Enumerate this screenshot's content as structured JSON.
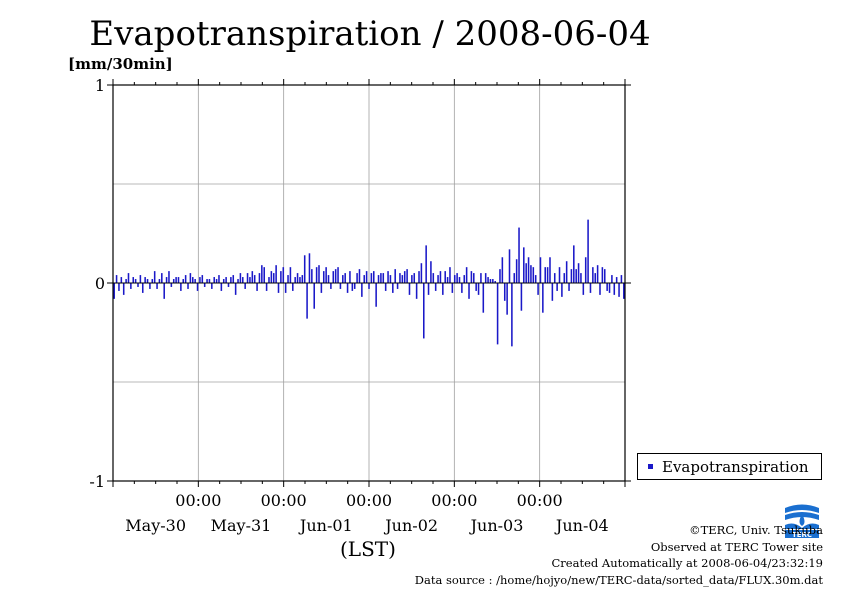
{
  "title": "Evapotranspiration / 2008-06-04",
  "unit_label": "[mm/30min]",
  "legend_label": "Evapotranspiration",
  "x_axis_label": "(LST)",
  "credits": {
    "copyright": "©TERC, Univ. Tsukuba",
    "observed": "Observed at TERC Tower site",
    "created": "Created Automatically at 2008-06-04/23:32:19",
    "source": "Data source : /home/hojyo/new/TERC-data/sorted_data/FLUX.30m.dat"
  },
  "logo_text": "TERC",
  "colors": {
    "series": "#1a18c8",
    "grid": "#a0a0a0",
    "axis": "#000000"
  },
  "chart_data": {
    "type": "bar",
    "ylim": [
      -1,
      1
    ],
    "y_ticks": [
      -1,
      0,
      1
    ],
    "y_tick_labels": [
      "-1",
      "0",
      "1"
    ],
    "x_range_days": [
      0,
      6
    ],
    "x_day_labels": [
      "May-30",
      "May-31",
      "Jun-01",
      "Jun-02",
      "Jun-03",
      "Jun-04"
    ],
    "x_time_labels": [
      "00:00",
      "00:00",
      "00:00",
      "00:00",
      "00:00"
    ],
    "grid": true,
    "legend_position": "bottom-right",
    "series": [
      {
        "name": "Evapotranspiration",
        "values": [
          -0.08,
          0.04,
          -0.04,
          0.03,
          -0.06,
          0.02,
          0.05,
          -0.03,
          0.03,
          0.02,
          -0.02,
          0.04,
          -0.05,
          0.03,
          0.02,
          -0.03,
          0.02,
          0.06,
          -0.03,
          0.02,
          0.05,
          -0.08,
          0.03,
          0.06,
          -0.02,
          0.02,
          0.03,
          0.03,
          -0.04,
          0.02,
          0.04,
          -0.03,
          0.05,
          0.03,
          0.02,
          -0.04,
          0.03,
          0.04,
          -0.02,
          0.02,
          0.02,
          -0.03,
          0.03,
          0.02,
          0.04,
          -0.04,
          0.02,
          0.03,
          -0.02,
          0.03,
          0.04,
          -0.06,
          0.02,
          0.05,
          0.03,
          -0.03,
          0.05,
          0.03,
          0.06,
          0.04,
          -0.04,
          0.05,
          0.09,
          0.08,
          -0.04,
          0.03,
          0.06,
          0.05,
          0.09,
          -0.05,
          0.06,
          0.08,
          -0.05,
          0.04,
          0.08,
          -0.04,
          0.03,
          0.05,
          0.03,
          0.04,
          0.14,
          -0.18,
          0.15,
          0.07,
          -0.13,
          0.08,
          0.09,
          -0.05,
          0.06,
          0.08,
          0.04,
          -0.03,
          0.06,
          0.07,
          0.08,
          -0.03,
          0.04,
          0.05,
          -0.05,
          0.06,
          -0.04,
          -0.03,
          0.05,
          0.07,
          -0.07,
          0.04,
          0.06,
          -0.03,
          0.05,
          0.06,
          -0.12,
          0.04,
          0.05,
          0.05,
          -0.04,
          0.06,
          0.04,
          -0.05,
          0.07,
          -0.03,
          0.05,
          0.04,
          0.06,
          0.07,
          -0.06,
          0.04,
          0.05,
          -0.08,
          0.06,
          0.1,
          -0.28,
          0.19,
          -0.06,
          0.11,
          0.05,
          -0.04,
          0.04,
          0.06,
          -0.06,
          0.06,
          0.03,
          0.08,
          -0.05,
          0.04,
          0.05,
          0.03,
          -0.05,
          0.04,
          0.08,
          -0.08,
          0.06,
          0.05,
          -0.04,
          -0.06,
          0.05,
          -0.15,
          0.05,
          0.03,
          0.02,
          0.02,
          0.01,
          -0.31,
          0.07,
          0.13,
          -0.09,
          -0.16,
          0.17,
          -0.32,
          0.05,
          0.12,
          0.28,
          -0.14,
          0.18,
          0.1,
          0.13,
          0.09,
          0.08,
          0.04,
          -0.06,
          0.13,
          -0.15,
          0.08,
          0.08,
          0.13,
          -0.09,
          0.05,
          -0.04,
          0.08,
          -0.07,
          0.05,
          0.11,
          -0.04,
          0.07,
          0.19,
          0.07,
          0.1,
          0.05,
          -0.06,
          0.13,
          0.32,
          -0.05,
          0.08,
          0.05,
          0.09,
          -0.06,
          0.08,
          0.07,
          -0.04,
          -0.05,
          0.04,
          -0.06,
          0.03,
          -0.07,
          0.04,
          -0.08
        ]
      }
    ]
  }
}
